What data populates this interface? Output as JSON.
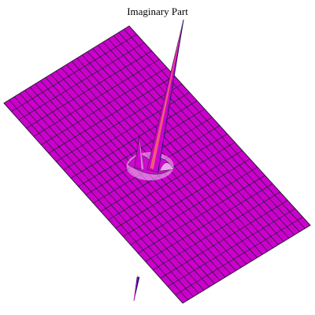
{
  "chart_data": {
    "type": "surface",
    "title": "Imaginary Part",
    "surface_color": "#cc00cc",
    "surface_highlight": "#f6c8f6",
    "mesh_color": "#2a1a3a",
    "spike_highlight": "#f36b63",
    "spike_shadow": "#1d1670",
    "grid": true,
    "axes": false,
    "features": [
      {
        "kind": "peak",
        "position": "center",
        "relative_height": 1.0
      },
      {
        "kind": "trough",
        "position": "center",
        "relative_depth": 1.0
      },
      {
        "kind": "ripple",
        "position": "center",
        "relative_height": 0.18
      }
    ]
  }
}
